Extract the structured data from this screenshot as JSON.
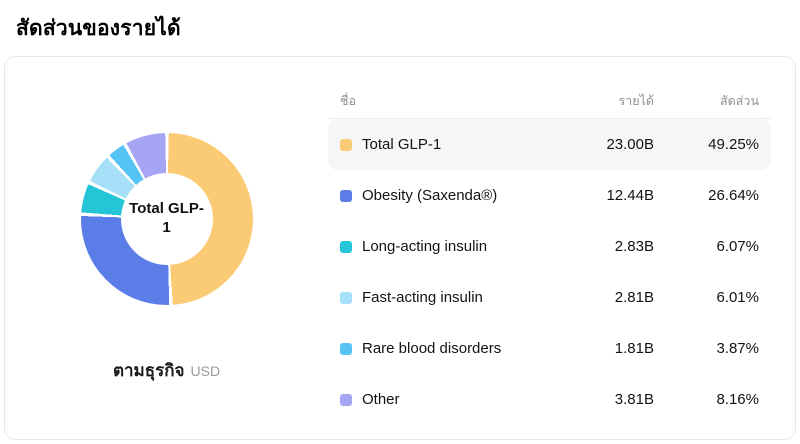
{
  "page": {
    "title": "สัดส่วนของรายได้"
  },
  "chart": {
    "center_label": "Total GLP-1",
    "caption": "ตามธุรกิจ",
    "caption_unit": "USD"
  },
  "table": {
    "headers": {
      "name": "ชื่อ",
      "revenue": "รายได้",
      "share": "สัดส่วน"
    },
    "rows": [
      {
        "name": "Total GLP-1",
        "revenue": "23.00B",
        "share": "49.25%",
        "color": "#FACB74",
        "value": 49.25
      },
      {
        "name": "Obesity (Saxenda®)",
        "revenue": "12.44B",
        "share": "26.64%",
        "color": "#5B7DE8",
        "value": 26.64
      },
      {
        "name": "Long-acting insulin",
        "revenue": "2.83B",
        "share": "6.07%",
        "color": "#25C5D8",
        "value": 6.07
      },
      {
        "name": "Fast-acting insulin",
        "revenue": "2.81B",
        "share": "6.01%",
        "color": "#A6E0F8",
        "value": 6.01
      },
      {
        "name": "Rare blood disorders",
        "revenue": "1.81B",
        "share": "3.87%",
        "color": "#55C3F3",
        "value": 3.87
      },
      {
        "name": "Other",
        "revenue": "3.81B",
        "share": "8.16%",
        "color": "#A6A5F4",
        "value": 8.16
      }
    ]
  },
  "chart_data": {
    "type": "pie",
    "donut": true,
    "title": "สัดส่วนของรายได้",
    "subtitle": "ตามธุรกิจ",
    "unit": "USD",
    "center_label": "Total GLP-1",
    "categories": [
      "Total GLP-1",
      "Obesity (Saxenda®)",
      "Long-acting insulin",
      "Fast-acting insulin",
      "Rare blood disorders",
      "Other"
    ],
    "values": [
      49.25,
      26.64,
      6.07,
      6.01,
      3.87,
      8.16
    ],
    "revenues_billions": [
      23.0,
      12.44,
      2.83,
      2.81,
      1.81,
      3.81
    ],
    "colors": [
      "#FACB74",
      "#5B7DE8",
      "#25C5D8",
      "#A6E0F8",
      "#55C3F3",
      "#A6A5F4"
    ],
    "legend_position": "right"
  }
}
